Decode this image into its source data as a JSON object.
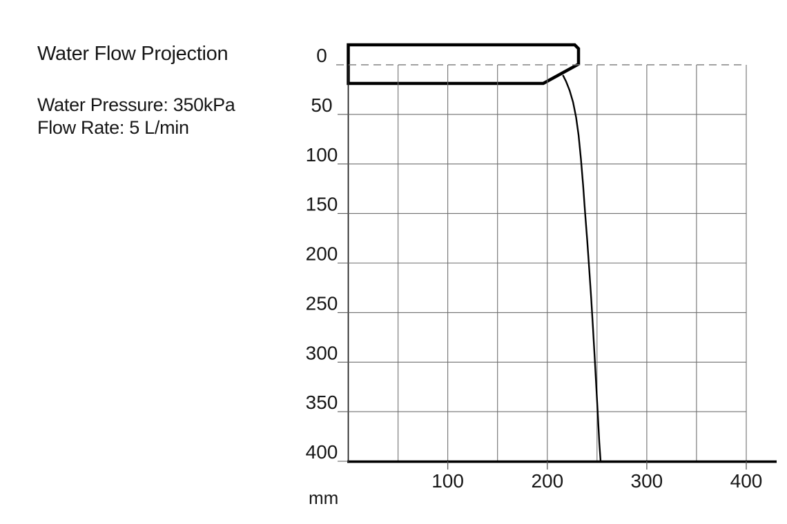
{
  "panel": {
    "title": "Water Flow Projection",
    "specs": [
      "Water Pressure: 350kPa",
      "Flow Rate: 5 L/min"
    ]
  },
  "chart_data": {
    "type": "line",
    "title": "Water Flow Projection",
    "xlabel": "mm",
    "ylabel": "mm",
    "unit_label": "mm",
    "x_range": [
      0,
      400
    ],
    "y_range": [
      0,
      400
    ],
    "y_axis_direction": "downward-drop-distance",
    "grid": true,
    "grid_step_mm": 50,
    "x_tick_labels": [
      100,
      200,
      300,
      400
    ],
    "y_tick_labels": [
      0,
      50,
      100,
      150,
      200,
      250,
      300,
      350,
      400
    ],
    "zero_line_style": "dashed",
    "water_pressure": "350kPa",
    "flow_rate": "5 L/min",
    "series": [
      {
        "name": "water-trajectory",
        "description": "Water stream path leaving spout tip: horizontal distance (mm) vs vertical drop (mm)",
        "points": [
          [
            216,
            11
          ],
          [
            219,
            17
          ],
          [
            222.5,
            26
          ],
          [
            226,
            38
          ],
          [
            229,
            53
          ],
          [
            231.5,
            71
          ],
          [
            233.8,
            95
          ],
          [
            236,
            121
          ],
          [
            238,
            149
          ],
          [
            240.2,
            178
          ],
          [
            242.2,
            207
          ],
          [
            244.2,
            237
          ],
          [
            246,
            266
          ],
          [
            247.6,
            295
          ],
          [
            249.2,
            324
          ],
          [
            250.8,
            353
          ],
          [
            252.3,
            381
          ],
          [
            253.6,
            400
          ]
        ]
      }
    ],
    "spout_outline_mm": [
      [
        0,
        -20.2
      ],
      [
        227.6,
        -20.2
      ],
      [
        231.4,
        -16.3
      ],
      [
        231.4,
        -0.7
      ],
      [
        196,
        18.8
      ],
      [
        0,
        18.8
      ]
    ]
  },
  "style": {
    "background": "#ffffff",
    "text": "#161616",
    "grid": "#6f6f6f",
    "dashed_zero": "#808080",
    "axis": "#1c1c1c",
    "axis_bottom": "#000000",
    "tick": "#5a5a5a",
    "spout_stroke": "#000000",
    "spout_fill": "#ffffff",
    "curve": "#000000"
  }
}
